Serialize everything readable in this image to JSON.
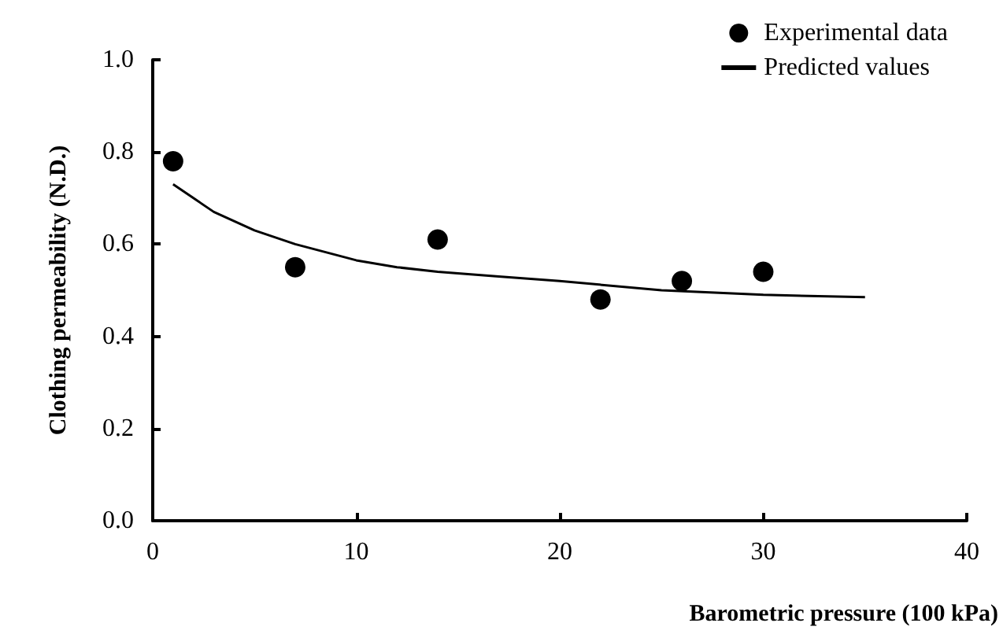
{
  "chart_data": {
    "type": "scatter",
    "xlabel": "Barometric pressure (100 kPa)",
    "ylabel": "Clothing permeability (N.D.)",
    "xlim": [
      0,
      40
    ],
    "xticks": [
      0,
      10,
      20,
      30,
      40
    ],
    "ylim": [
      0,
      1
    ],
    "yticks": [
      {
        "value": 0,
        "label": "0.0"
      },
      {
        "value": 0.2,
        "label": "0.2"
      },
      {
        "value": 0.4,
        "label": "0.4"
      },
      {
        "value": 0.6,
        "label": "0.6"
      },
      {
        "value": 0.8,
        "label": "0.8"
      },
      {
        "value": 1,
        "label": "1.0"
      }
    ],
    "grid": false,
    "legend": "top right",
    "series": [
      {
        "name": "Experimental data",
        "type": "scatter",
        "marker": "circle",
        "color": "#000000",
        "x": [
          1,
          7,
          14,
          22,
          26,
          30
        ],
        "values": [
          0.78,
          0.55,
          0.61,
          0.48,
          0.52,
          0.54
        ]
      },
      {
        "name": "Predicted values",
        "type": "line",
        "marker": "none",
        "line_style": "solid",
        "color": "#000000",
        "x": [
          1,
          2,
          3,
          4,
          5,
          7,
          10,
          12,
          14,
          17,
          20,
          25,
          30,
          35
        ],
        "values": [
          0.73,
          0.7,
          0.67,
          0.65,
          0.63,
          0.6,
          0.565,
          0.55,
          0.54,
          0.53,
          0.52,
          0.5,
          0.49,
          0.485
        ]
      }
    ]
  }
}
